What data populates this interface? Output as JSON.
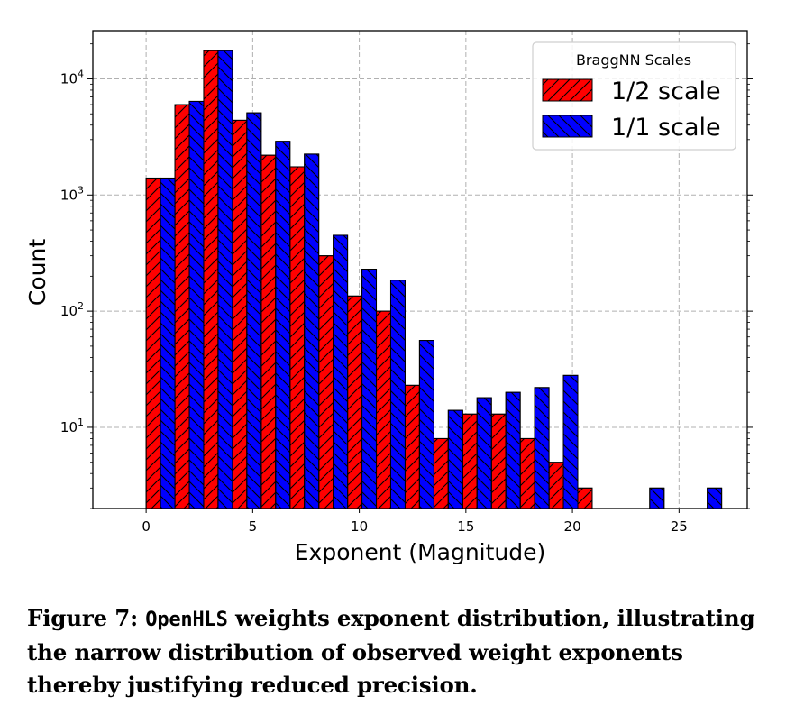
{
  "chart_data": {
    "type": "bar",
    "xlabel": "Exponent (Magnitude)",
    "ylabel": "Count",
    "yscale": "log",
    "xlim": [
      -2.5,
      28.2
    ],
    "ylim": [
      2,
      26000
    ],
    "xticks": [
      0,
      5,
      10,
      15,
      20,
      25
    ],
    "yticks": [
      {
        "value": 10,
        "base": "10",
        "exp": "1"
      },
      {
        "value": 100,
        "base": "10",
        "exp": "2"
      },
      {
        "value": 1000,
        "base": "10",
        "exp": "3"
      },
      {
        "value": 10000,
        "base": "10",
        "exp": "4"
      }
    ],
    "grid": true,
    "bin_width": 1.35,
    "legend": {
      "title": "BraggNN Scales",
      "location": "top-right"
    },
    "series": [
      {
        "name": "1/2 scale",
        "color": "#ff0000",
        "hatch": "/",
        "points": [
          {
            "x": 0.0,
            "y": 1400
          },
          {
            "x": 1.35,
            "y": 6000
          },
          {
            "x": 2.7,
            "y": 17500
          },
          {
            "x": 4.05,
            "y": 4400
          },
          {
            "x": 5.4,
            "y": 2200
          },
          {
            "x": 6.75,
            "y": 1750
          },
          {
            "x": 8.1,
            "y": 300
          },
          {
            "x": 9.45,
            "y": 135
          },
          {
            "x": 10.8,
            "y": 100
          },
          {
            "x": 12.15,
            "y": 23
          },
          {
            "x": 13.5,
            "y": 8
          },
          {
            "x": 14.85,
            "y": 13
          },
          {
            "x": 16.2,
            "y": 13
          },
          {
            "x": 17.55,
            "y": 8
          },
          {
            "x": 18.9,
            "y": 5
          },
          {
            "x": 20.25,
            "y": 3
          }
        ]
      },
      {
        "name": "1/1 scale",
        "color": "#0000ff",
        "hatch": "\\",
        "points": [
          {
            "x": 0.0,
            "y": 1400
          },
          {
            "x": 1.35,
            "y": 6400
          },
          {
            "x": 2.7,
            "y": 17500
          },
          {
            "x": 4.05,
            "y": 5100
          },
          {
            "x": 5.4,
            "y": 2900
          },
          {
            "x": 6.75,
            "y": 2250
          },
          {
            "x": 8.1,
            "y": 450
          },
          {
            "x": 9.45,
            "y": 230
          },
          {
            "x": 10.8,
            "y": 185
          },
          {
            "x": 12.15,
            "y": 56
          },
          {
            "x": 13.5,
            "y": 14
          },
          {
            "x": 14.85,
            "y": 18
          },
          {
            "x": 16.2,
            "y": 20
          },
          {
            "x": 17.55,
            "y": 22
          },
          {
            "x": 18.9,
            "y": 28
          },
          {
            "x": 22.95,
            "y": 3
          },
          {
            "x": 25.65,
            "y": 3
          }
        ]
      }
    ]
  },
  "caption": {
    "prefix": "Figure 7: ",
    "code": "OpenHLS",
    "rest": " weights exponent distribution, illustrating the narrow distribution of observed weight exponents thereby justifying reduced precision."
  }
}
